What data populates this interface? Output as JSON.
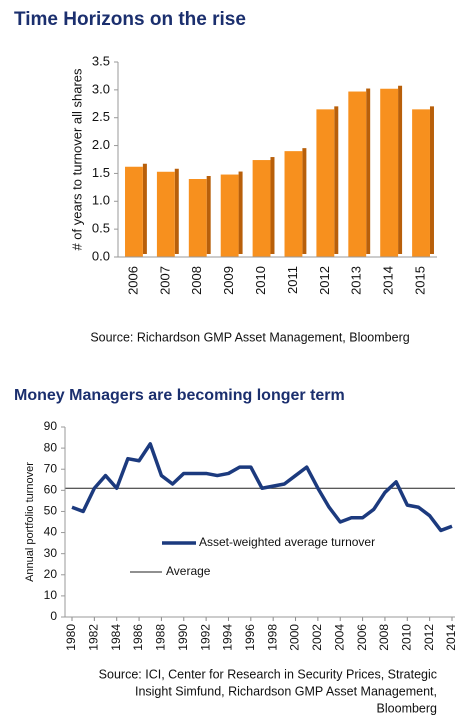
{
  "chart_data": [
    {
      "type": "bar",
      "title": "Time Horizons on the rise",
      "y_label": "# of years to turnover all shares",
      "categories": [
        "2006",
        "2007",
        "2008",
        "2009",
        "2010",
        "2011",
        "2012",
        "2013",
        "2014",
        "2015"
      ],
      "values": [
        1.62,
        1.53,
        1.4,
        1.48,
        1.74,
        1.9,
        2.65,
        2.97,
        3.02,
        2.65
      ],
      "color": "#f7901e",
      "ylim": [
        0,
        3.5
      ],
      "yticks": [
        {
          "value": 0,
          "label": "0.0"
        },
        0.5,
        {
          "value": 1,
          "label": "1.0"
        },
        1.5,
        {
          "value": 2,
          "label": "2.0"
        },
        2.5,
        {
          "value": 3,
          "label": "3.0"
        },
        3.5
      ],
      "grid": false,
      "source": [
        "Source: Richardson GMP Asset Management, Bloomberg"
      ]
    },
    {
      "type": "line",
      "title": "Money Managers are becoming longer term",
      "y_label": "Annual portfolio turnover",
      "x": [
        1980,
        1981,
        1982,
        1983,
        1984,
        1985,
        1986,
        1987,
        1988,
        1989,
        1990,
        1991,
        1992,
        1993,
        1994,
        1995,
        1996,
        1997,
        1998,
        1999,
        2000,
        2001,
        2002,
        2003,
        2004,
        2005,
        2006,
        2007,
        2008,
        2009,
        2010,
        2011,
        2012,
        2013,
        2014
      ],
      "series": [
        {
          "name": "Asset-weighted average turnover",
          "color": "#1c3a7e",
          "values": [
            52,
            50,
            61,
            67,
            61,
            75,
            74,
            82,
            67,
            63,
            68,
            68,
            68,
            67,
            68,
            71,
            71,
            61,
            62,
            63,
            67,
            71,
            61,
            52,
            45,
            47,
            47,
            51,
            59,
            64,
            53,
            52,
            48,
            41,
            43
          ]
        }
      ],
      "reference_lines": [
        {
          "name": "Average",
          "value": 61,
          "color": "#222222"
        }
      ],
      "xlim": [
        1980,
        2014
      ],
      "xticks": [
        1980,
        1982,
        1984,
        1986,
        1988,
        1990,
        1992,
        1994,
        1996,
        1998,
        2000,
        2002,
        2004,
        2006,
        2008,
        2010,
        2012,
        2014
      ],
      "ylim": [
        0,
        90
      ],
      "yticks": [
        0,
        10,
        20,
        30,
        40,
        50,
        60,
        70,
        80,
        90
      ],
      "grid": false,
      "source": [
        "Source: ICI, Center for Research in Security Prices, Strategic",
        "Insight Simfund, Richardson GMP Asset Management,",
        "Bloomberg"
      ]
    }
  ]
}
